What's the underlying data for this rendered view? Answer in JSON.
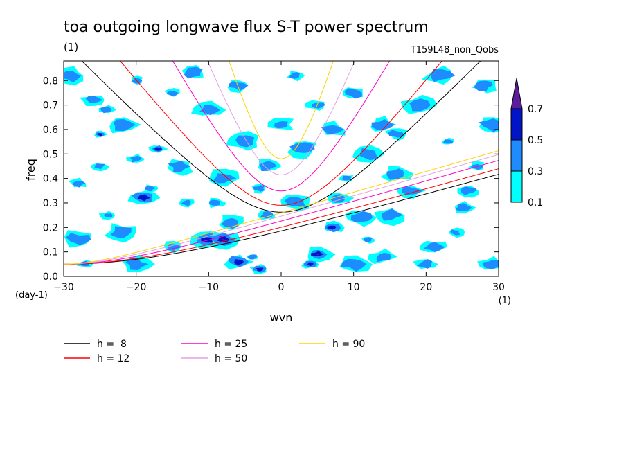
{
  "chart_data": {
    "type": "heatmap",
    "title": "toa outgoing longwave flux S-T power spectrum",
    "title_units": "(1)",
    "subtitle": "T159L48_non_Qobs",
    "xlabel": "wvn",
    "ylabel": "freq",
    "x_units": "(1)",
    "y_units": "(day-1)",
    "xlim": [
      -30,
      30
    ],
    "ylim": [
      0,
      0.88
    ],
    "xticks": [
      "-30",
      "-20",
      "-10",
      "0",
      "10",
      "20",
      "30"
    ],
    "yticks": [
      "0.0",
      "0.1",
      "0.2",
      "0.3",
      "0.4",
      "0.5",
      "0.6",
      "0.7",
      "0.8"
    ],
    "colorbar": {
      "levels": [
        "0.1",
        "0.3",
        "0.5",
        "0.7"
      ],
      "colors": [
        "#00ffff",
        "#1e8cff",
        "#0014c8",
        "#5a1e9b"
      ]
    },
    "dispersion_curves": [
      {
        "label": "h =  8",
        "h": 8,
        "color": "#000000"
      },
      {
        "label": "h = 12",
        "h": 12,
        "color": "#ff0000"
      },
      {
        "label": "h = 25",
        "h": 25,
        "color": "#ff00c8"
      },
      {
        "label": "h = 50",
        "h": 50,
        "color": "#e6a0e6"
      },
      {
        "label": "h = 90",
        "h": 90,
        "color": "#ffd200"
      }
    ],
    "contour_blobs": [
      {
        "x": -25,
        "y": 0.58,
        "level": 2
      },
      {
        "x": -22,
        "y": 0.62,
        "level": 1
      },
      {
        "x": -17,
        "y": 0.52,
        "level": 2
      },
      {
        "x": -20,
        "y": 0.48,
        "level": 1
      },
      {
        "x": -25,
        "y": 0.45,
        "level": 1
      },
      {
        "x": -28,
        "y": 0.38,
        "level": 1
      },
      {
        "x": -18,
        "y": 0.36,
        "level": 1
      },
      {
        "x": -19,
        "y": 0.32,
        "level": 2
      },
      {
        "x": -13,
        "y": 0.3,
        "level": 1
      },
      {
        "x": -24,
        "y": 0.25,
        "level": 1
      },
      {
        "x": -28,
        "y": 0.15,
        "level": 1
      },
      {
        "x": -15,
        "y": 0.12,
        "level": 1
      },
      {
        "x": -10,
        "y": 0.15,
        "level": 2
      },
      {
        "x": -8,
        "y": 0.15,
        "level": 3
      },
      {
        "x": -6,
        "y": 0.06,
        "level": 2
      },
      {
        "x": -3,
        "y": 0.03,
        "level": 3
      },
      {
        "x": -4,
        "y": 0.08,
        "level": 1
      },
      {
        "x": 5,
        "y": 0.09,
        "level": 3
      },
      {
        "x": 4,
        "y": 0.05,
        "level": 2
      },
      {
        "x": 7,
        "y": 0.2,
        "level": 2
      },
      {
        "x": 8,
        "y": 0.32,
        "level": 1
      },
      {
        "x": 9,
        "y": 0.4,
        "level": 1
      },
      {
        "x": 2,
        "y": 0.3,
        "level": 1
      },
      {
        "x": -2,
        "y": 0.25,
        "level": 1
      },
      {
        "x": -7,
        "y": 0.22,
        "level": 1
      },
      {
        "x": 12,
        "y": 0.15,
        "level": 1
      },
      {
        "x": 15,
        "y": 0.25,
        "level": 1
      },
      {
        "x": 18,
        "y": 0.35,
        "level": 1
      },
      {
        "x": 21,
        "y": 0.12,
        "level": 1
      },
      {
        "x": 25,
        "y": 0.28,
        "level": 1
      },
      {
        "x": 27,
        "y": 0.45,
        "level": 1
      },
      {
        "x": 23,
        "y": 0.55,
        "level": 1
      },
      {
        "x": 19,
        "y": 0.7,
        "level": 1
      },
      {
        "x": 14,
        "y": 0.62,
        "level": 1
      },
      {
        "x": 10,
        "y": 0.75,
        "level": 1
      },
      {
        "x": 5,
        "y": 0.7,
        "level": 1
      },
      {
        "x": 0,
        "y": 0.62,
        "level": 1
      },
      {
        "x": -5,
        "y": 0.55,
        "level": 1
      },
      {
        "x": -10,
        "y": 0.68,
        "level": 1
      },
      {
        "x": -15,
        "y": 0.75,
        "level": 1
      },
      {
        "x": -20,
        "y": 0.8,
        "level": 1
      },
      {
        "x": -26,
        "y": 0.72,
        "level": 1
      },
      {
        "x": -14,
        "y": 0.45,
        "level": 1
      },
      {
        "x": -8,
        "y": 0.4,
        "level": 1
      },
      {
        "x": -2,
        "y": 0.45,
        "level": 1
      },
      {
        "x": 3,
        "y": 0.52,
        "level": 1
      },
      {
        "x": 12,
        "y": 0.5,
        "level": 1
      },
      {
        "x": 16,
        "y": 0.42,
        "level": 1
      },
      {
        "x": 22,
        "y": 0.82,
        "level": 1
      },
      {
        "x": 28,
        "y": 0.78,
        "level": 1
      },
      {
        "x": -29,
        "y": 0.82,
        "level": 1
      },
      {
        "x": -12,
        "y": 0.83,
        "level": 1
      },
      {
        "x": 2,
        "y": 0.82,
        "level": 1
      },
      {
        "x": 29,
        "y": 0.62,
        "level": 1
      },
      {
        "x": 29,
        "y": 0.05,
        "level": 1
      },
      {
        "x": 20,
        "y": 0.05,
        "level": 1
      },
      {
        "x": 10,
        "y": 0.05,
        "level": 1
      },
      {
        "x": -20,
        "y": 0.05,
        "level": 1
      },
      {
        "x": -27,
        "y": 0.05,
        "level": 1
      },
      {
        "x": -22,
        "y": 0.18,
        "level": 1
      },
      {
        "x": 11,
        "y": 0.24,
        "level": 1
      },
      {
        "x": 24,
        "y": 0.18,
        "level": 1
      },
      {
        "x": 16,
        "y": 0.58,
        "level": 1
      },
      {
        "x": -6,
        "y": 0.78,
        "level": 1
      },
      {
        "x": 7,
        "y": 0.6,
        "level": 1
      },
      {
        "x": -3,
        "y": 0.36,
        "level": 1
      },
      {
        "x": 26,
        "y": 0.35,
        "level": 1
      },
      {
        "x": 14,
        "y": 0.08,
        "level": 1
      },
      {
        "x": -9,
        "y": 0.3,
        "level": 1
      },
      {
        "x": -24,
        "y": 0.68,
        "level": 1
      }
    ]
  }
}
